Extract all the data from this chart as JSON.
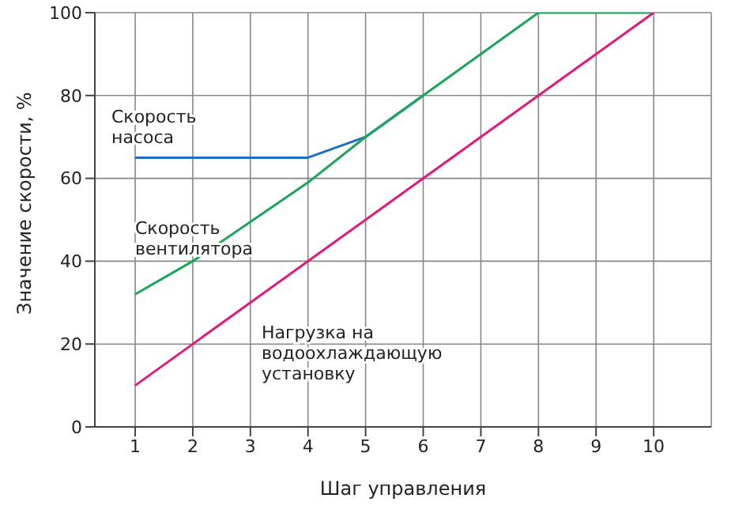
{
  "chart_data": {
    "type": "line",
    "xlabel": "Шаг управления",
    "ylabel": "Значение скорости, %",
    "xlim": [
      0.3,
      11
    ],
    "xticks": [
      1,
      2,
      3,
      4,
      5,
      6,
      7,
      8,
      9,
      10
    ],
    "ylim": [
      0,
      100
    ],
    "yticks": [
      0,
      20,
      40,
      60,
      80,
      100
    ],
    "grid": true,
    "marker": "none",
    "line_style": "solid",
    "series": [
      {
        "name": "Скорость\nнасоса",
        "color": "#1f6fc0",
        "x": [
          1,
          2,
          4,
          5,
          6
        ],
        "values": [
          65,
          65,
          65,
          70,
          80
        ]
      },
      {
        "name": "Скорость\nвентилятора",
        "color": "#1aa55a",
        "x": [
          1,
          2,
          4,
          5,
          6,
          8,
          10
        ],
        "values": [
          32,
          40,
          59,
          70,
          80,
          100,
          100
        ]
      },
      {
        "name": "Нагрузка на\nводоохлаждающую\nустановку",
        "color": "#e0197d",
        "x": [
          1,
          10
        ],
        "values": [
          10,
          100
        ]
      }
    ]
  }
}
